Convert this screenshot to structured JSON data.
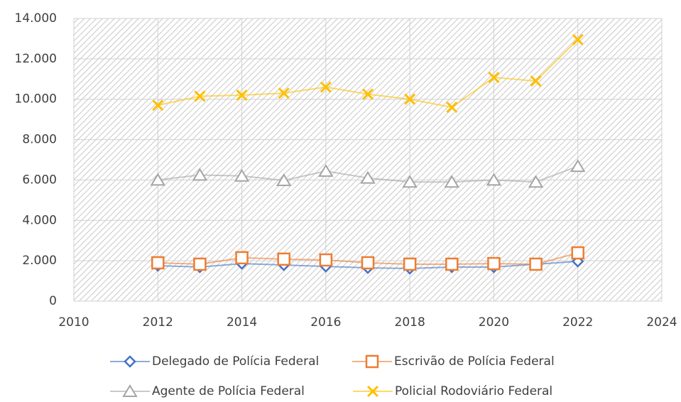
{
  "chart_data": {
    "type": "line",
    "x": [
      2012,
      2013,
      2014,
      2015,
      2016,
      2017,
      2018,
      2019,
      2020,
      2021,
      2022
    ],
    "series": [
      {
        "name": "Delegado de Polícia Federal",
        "color": "#4472c4",
        "marker": "diamond",
        "values": [
          1760,
          1690,
          1860,
          1790,
          1720,
          1650,
          1620,
          1690,
          1690,
          1830,
          1970
        ]
      },
      {
        "name": "Escrivão de Polícia Federal",
        "color": "#ed7d31",
        "marker": "square",
        "values": [
          1900,
          1830,
          2150,
          2080,
          2040,
          1900,
          1830,
          1830,
          1860,
          1830,
          2390
        ]
      },
      {
        "name": "Agente de Polícia Federal",
        "color": "#a5a5a5",
        "marker": "triangle",
        "values": [
          6000,
          6250,
          6200,
          5980,
          6440,
          6100,
          5900,
          5900,
          6000,
          5900,
          6680
        ]
      },
      {
        "name": "Policial Rodoviário Federal",
        "color": "#ffc000",
        "marker": "x",
        "values": [
          9700,
          10150,
          10200,
          10300,
          10600,
          10250,
          10000,
          9600,
          11080,
          10900,
          12950
        ]
      }
    ],
    "xlim": [
      2010,
      2024
    ],
    "xticks": [
      2010,
      2012,
      2014,
      2016,
      2018,
      2020,
      2022,
      2024
    ],
    "ylim": [
      0,
      14000
    ],
    "yticks": [
      0,
      {
        "value": 2000,
        "label": "2.000"
      },
      {
        "value": 4000,
        "label": "4.000"
      },
      {
        "value": 6000,
        "label": "6.000"
      },
      {
        "value": 8000,
        "label": "8.000"
      },
      {
        "value": 10000,
        "label": "10.000"
      },
      {
        "value": 12000,
        "label": "12.000"
      },
      {
        "value": 14000,
        "label": "14.000"
      }
    ],
    "grid": true,
    "legend": "bottom"
  }
}
